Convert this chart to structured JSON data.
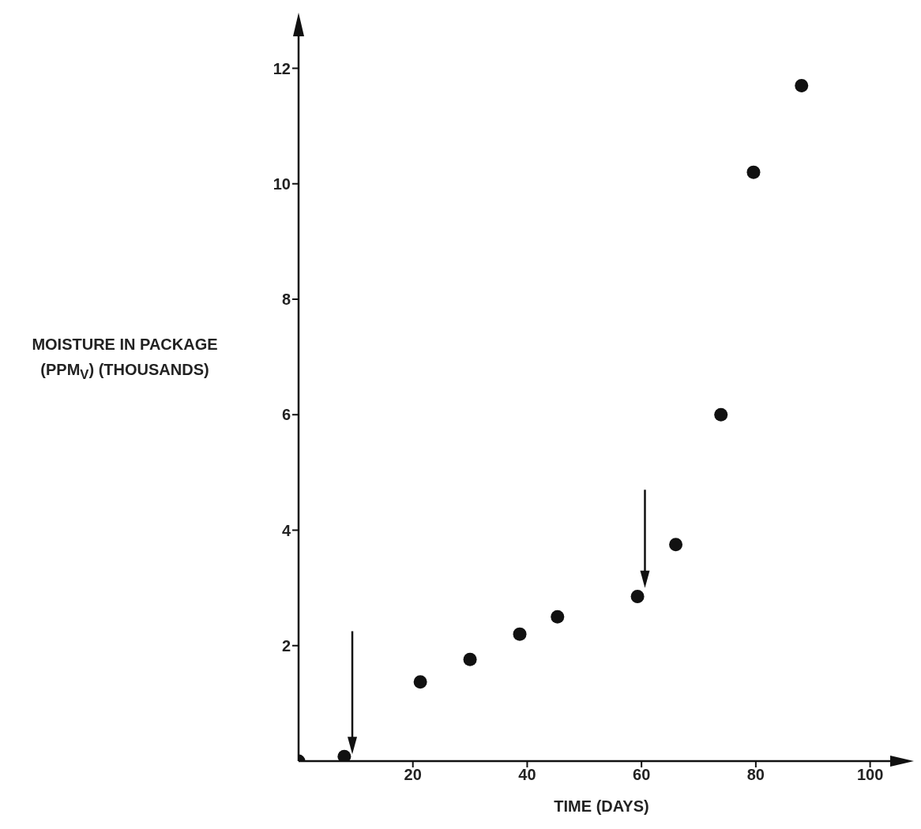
{
  "chart_data": {
    "type": "scatter",
    "xlabel": "TIME (DAYS)",
    "ylabel": "MOISTURE IN PACKAGE (PPM$_{V}$) (THOUSANDS)",
    "x": [
      0,
      8,
      21.3,
      30,
      38.7,
      45.3,
      59.3,
      66,
      73.9,
      79.6,
      88
    ],
    "values": [
      0,
      0.08,
      1.37,
      1.76,
      2.2,
      2.5,
      2.85,
      3.75,
      6,
      10.2,
      11.7
    ],
    "color": "#111111",
    "marker": "circle",
    "xlim": [
      0,
      106
    ],
    "ylim": [
      0,
      12.8
    ],
    "xticks": [
      20,
      40,
      60,
      80,
      100
    ],
    "yticks": [
      2,
      4,
      6,
      8,
      10,
      12
    ],
    "grid": false,
    "legend": false
  }
}
